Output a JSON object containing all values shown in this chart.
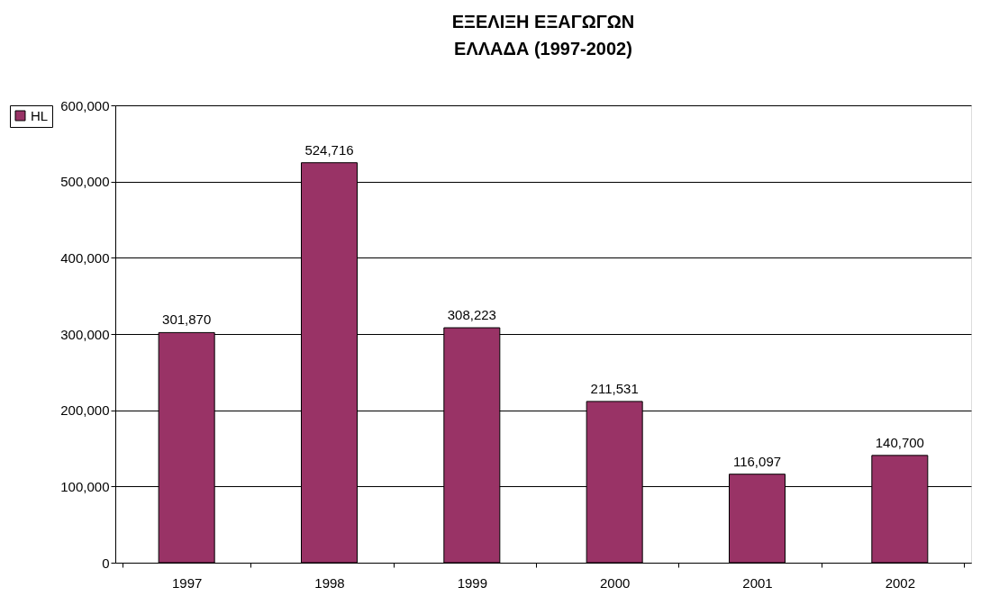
{
  "chart_data": {
    "type": "bar",
    "title": "ΕΞΕΛΙΞΗ ΕΞΑΓΩΓΩΝ\nΕΛΛΑΔΑ (1997-2002)",
    "categories": [
      "1997",
      "1998",
      "1999",
      "2000",
      "2001",
      "2002"
    ],
    "series": [
      {
        "name": "HL",
        "color": "#993366",
        "values": [
          301870,
          524716,
          308223,
          211531,
          116097,
          140700
        ],
        "value_labels": [
          "301,870",
          "524,716",
          "308,223",
          "211,531",
          "116,097",
          "140,700"
        ]
      }
    ],
    "ylim": [
      0,
      600000
    ],
    "yticks": [
      0,
      {
        "value": 100000,
        "label": "100,000"
      },
      {
        "value": 200000,
        "label": "200,000"
      },
      {
        "value": 300000,
        "label": "300,000"
      },
      {
        "value": 400000,
        "label": "400,000"
      },
      {
        "value": 500000,
        "label": "500,000"
      },
      {
        "value": 600000,
        "label": "600,000"
      }
    ],
    "grid": "y",
    "legend": "left"
  }
}
